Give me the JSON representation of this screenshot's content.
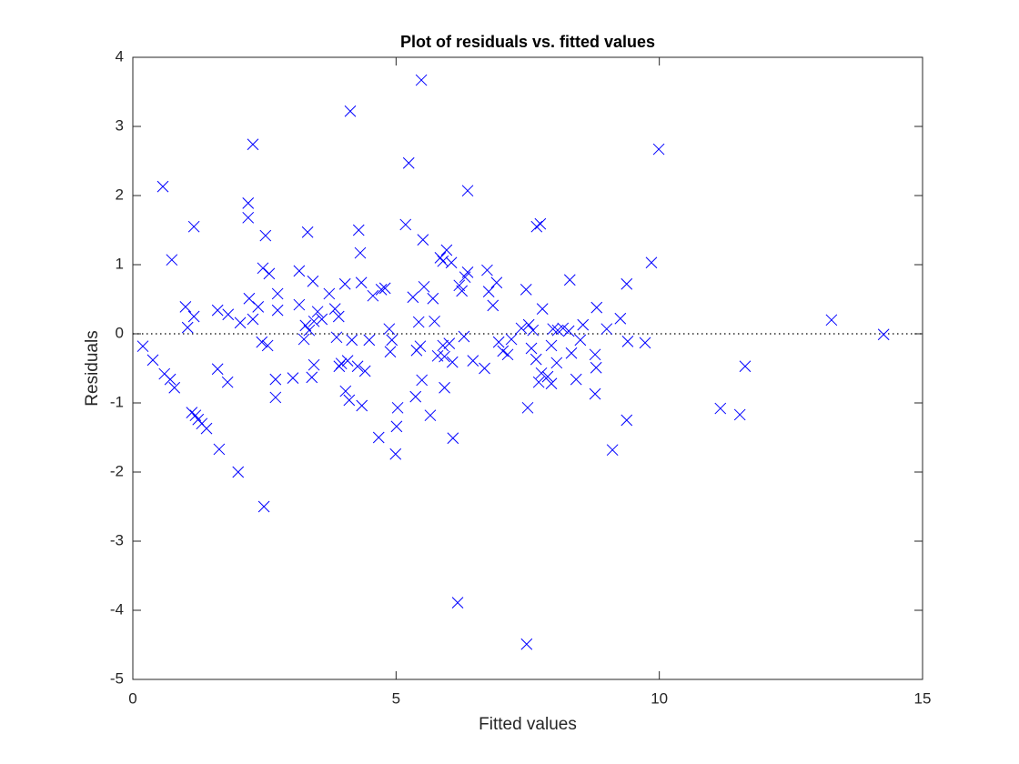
{
  "chart_data": {
    "type": "scatter",
    "title": "Plot of residuals vs. fitted values",
    "xlabel": "Fitted values",
    "ylabel": "Residuals",
    "x": [
      0.19,
      0.38,
      0.57,
      0.6,
      0.71,
      0.74,
      0.79,
      1.0,
      1.04,
      1.12,
      1.16,
      1.16,
      1.19,
      1.24,
      1.31,
      1.4,
      1.61,
      1.61,
      1.64,
      1.8,
      1.81,
      2.0,
      2.04,
      2.19,
      2.19,
      2.21,
      2.28,
      2.28,
      2.38,
      2.45,
      2.47,
      2.49,
      2.52,
      2.56,
      2.59,
      2.71,
      2.71,
      2.75,
      2.75,
      3.04,
      3.16,
      3.16,
      3.25,
      3.28,
      3.32,
      3.35,
      3.4,
      3.42,
      3.44,
      3.44,
      3.51,
      3.59,
      3.73,
      3.84,
      3.87,
      3.91,
      3.92,
      3.96,
      4.03,
      4.04,
      4.08,
      4.11,
      4.13,
      4.16,
      4.27,
      4.29,
      4.32,
      4.34,
      4.35,
      4.41,
      4.49,
      4.56,
      4.67,
      4.72,
      4.79,
      4.87,
      4.89,
      4.92,
      5.01,
      5.03,
      4.99,
      5.18,
      5.24,
      5.32,
      5.37,
      5.39,
      5.43,
      5.46,
      5.48,
      5.49,
      5.51,
      5.53,
      5.65,
      5.7,
      5.73,
      5.79,
      5.84,
      5.89,
      5.89,
      5.92,
      5.92,
      5.96,
      6.01,
      6.05,
      6.07,
      6.08,
      6.17,
      6.2,
      6.25,
      6.29,
      6.31,
      6.36,
      6.36,
      6.46,
      6.68,
      6.73,
      6.76,
      6.84,
      6.91,
      6.95,
      7.03,
      7.12,
      7.19,
      7.38,
      7.47,
      7.5,
      7.48,
      7.52,
      7.57,
      7.6,
      7.66,
      7.67,
      7.74,
      7.71,
      7.76,
      7.78,
      7.88,
      7.95,
      7.95,
      7.98,
      8.05,
      8.07,
      8.17,
      8.28,
      8.3,
      8.33,
      8.42,
      8.5,
      8.55,
      8.78,
      8.78,
      8.8,
      8.81,
      9.0,
      9.11,
      9.26,
      9.38,
      9.38,
      9.4,
      9.73,
      9.85,
      9.99,
      11.16,
      11.53,
      11.63,
      13.27,
      14.26
    ],
    "values": [
      -0.18,
      -0.38,
      2.13,
      -0.58,
      -0.66,
      1.07,
      -0.78,
      0.39,
      0.09,
      -1.14,
      0.25,
      1.55,
      -1.18,
      -1.24,
      -1.3,
      -1.37,
      0.34,
      -0.51,
      -1.67,
      -0.7,
      0.28,
      -2.0,
      0.16,
      1.89,
      1.68,
      0.51,
      2.74,
      0.21,
      0.39,
      -0.12,
      0.95,
      -2.5,
      1.42,
      -0.17,
      0.87,
      -0.66,
      -0.92,
      0.34,
      0.58,
      -0.64,
      0.91,
      0.42,
      -0.08,
      0.12,
      1.47,
      0.05,
      -0.63,
      0.76,
      0.18,
      -0.45,
      0.32,
      0.21,
      0.58,
      0.36,
      -0.05,
      0.25,
      -0.47,
      -0.43,
      0.72,
      -0.83,
      -0.39,
      -0.96,
      3.22,
      -0.09,
      -0.47,
      1.5,
      1.17,
      0.74,
      -1.04,
      -0.54,
      -0.09,
      0.55,
      -1.5,
      0.64,
      0.66,
      0.07,
      -0.26,
      -0.09,
      -1.34,
      -1.07,
      -1.74,
      1.58,
      2.47,
      0.53,
      -0.91,
      -0.24,
      0.17,
      -0.18,
      3.67,
      -0.67,
      1.36,
      0.68,
      -1.18,
      0.51,
      0.18,
      -0.32,
      1.1,
      -0.17,
      1.05,
      -0.78,
      -0.33,
      1.21,
      -0.14,
      1.03,
      -0.41,
      -1.51,
      -3.89,
      0.7,
      0.62,
      -0.04,
      0.82,
      2.07,
      0.89,
      -0.39,
      -0.5,
      0.92,
      0.61,
      0.41,
      0.74,
      -0.12,
      -0.25,
      -0.3,
      -0.08,
      0.08,
      0.64,
      -1.07,
      -4.49,
      0.13,
      -0.21,
      0.05,
      -0.37,
      1.55,
      1.59,
      -0.7,
      -0.57,
      0.36,
      -0.62,
      -0.17,
      -0.72,
      0.07,
      -0.42,
      0.05,
      0.08,
      0.04,
      0.78,
      -0.28,
      -0.66,
      -0.09,
      0.13,
      -0.3,
      -0.87,
      -0.49,
      0.38,
      0.07,
      -1.68,
      0.22,
      0.72,
      -1.25,
      -0.11,
      -0.13,
      1.03,
      2.67,
      -1.08,
      -1.17,
      -0.47,
      0.2,
      -0.01
    ],
    "color": "#0000ff",
    "marker": "x",
    "reference_line": 0,
    "xlim": [
      0,
      15
    ],
    "xticks": [
      0,
      5,
      10,
      15
    ],
    "ylim": [
      -5,
      4
    ],
    "yticks": [
      -5,
      -4,
      -3,
      -2,
      -1,
      0,
      1,
      2,
      3,
      4
    ]
  }
}
